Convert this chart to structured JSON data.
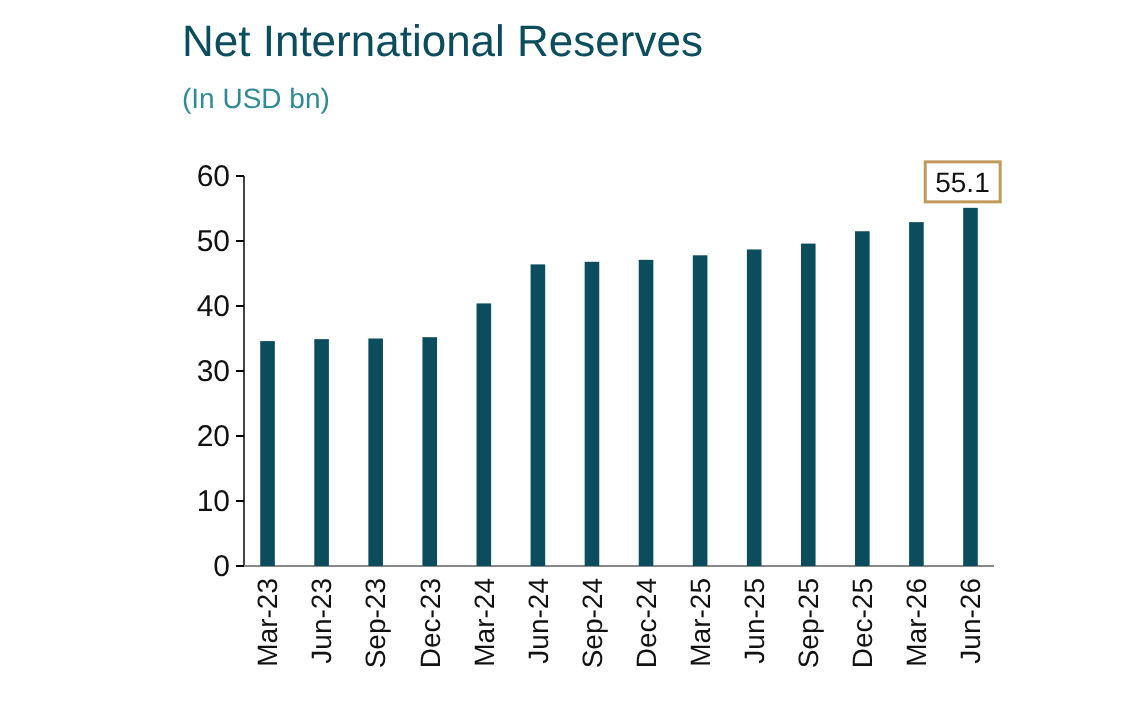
{
  "chart_data": {
    "type": "bar",
    "title": "Net International Reserves",
    "subtitle": "(In USD bn)",
    "categories": [
      "Mar-23",
      "Jun-23",
      "Sep-23",
      "Dec-23",
      "Mar-24",
      "Jun-24",
      "Sep-24",
      "Dec-24",
      "Mar-25",
      "Jun-25",
      "Sep-25",
      "Dec-25",
      "Mar-26",
      "Jun-26"
    ],
    "values": [
      34.6,
      34.9,
      35.0,
      35.2,
      40.4,
      46.4,
      46.8,
      47.1,
      47.8,
      48.7,
      49.6,
      51.5,
      52.9,
      55.1
    ],
    "value_labels": [
      null,
      null,
      null,
      null,
      null,
      null,
      null,
      null,
      null,
      null,
      null,
      null,
      null,
      "55.1"
    ],
    "color": "#0b4d5c",
    "ylim": [
      0,
      60
    ],
    "yticks": [
      0,
      10,
      20,
      30,
      40,
      50,
      60
    ],
    "grid": false
  }
}
